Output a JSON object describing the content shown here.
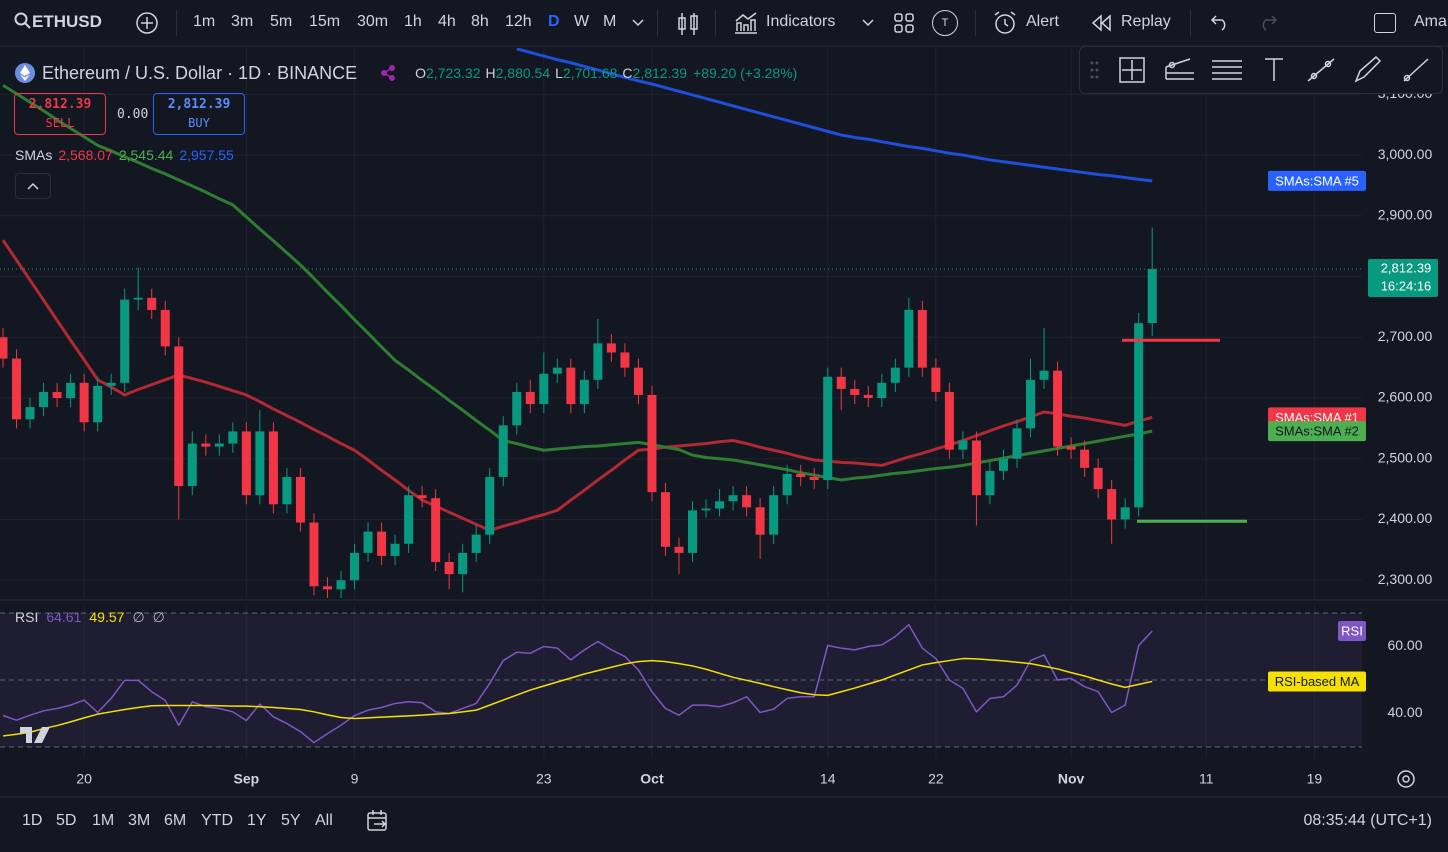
{
  "toolbar": {
    "symbol": "ETHUSD",
    "intervals": [
      "1m",
      "3m",
      "5m",
      "15m",
      "30m",
      "1h",
      "4h",
      "8h",
      "12h",
      "D",
      "W",
      "M"
    ],
    "active_interval": "D",
    "indicators": "Indicators",
    "alert": "Alert",
    "replay": "Replay",
    "cut_off": "Ama",
    "badge": "T"
  },
  "legend": {
    "title": "Ethereum / U.S. Dollar · 1D · BINANCE",
    "ohlc": [
      {
        "key": "O",
        "value": "2,723.32"
      },
      {
        "key": "H",
        "value": "2,880.54"
      },
      {
        "key": "L",
        "value": "2,701.68"
      },
      {
        "key": "C",
        "value": "2,812.39"
      }
    ],
    "change": "+89.20 (+3.28%)",
    "sell_price": "2,812.39",
    "sell": "SELL",
    "spread": "0.00",
    "buy_price": "2,812.39",
    "buy": "BUY",
    "sma_name": "SMAs",
    "sma_values": [
      "2,568.07",
      "2,545.44",
      "2,957.55"
    ],
    "rsi_name": "RSI",
    "rsi_values": [
      "64.61",
      "49.57",
      "∅",
      "∅"
    ]
  },
  "chart_data": [
    {
      "type": "candlestick",
      "up_color": "#089981",
      "down_color": "#f23645",
      "grid": true,
      "categories": [
        null,
        null,
        null,
        null,
        null,
        null,
        "20",
        null,
        null,
        null,
        null,
        null,
        null,
        null,
        null,
        null,
        null,
        null,
        "Sep",
        null,
        null,
        null,
        null,
        null,
        null,
        null,
        "9",
        null,
        null,
        null,
        null,
        null,
        null,
        null,
        null,
        null,
        null,
        null,
        null,
        null,
        "23",
        null,
        null,
        null,
        null,
        null,
        null,
        null,
        "Oct",
        null,
        null,
        null,
        null,
        null,
        null,
        null,
        null,
        null,
        null,
        null,
        null,
        "14",
        null,
        null,
        null,
        null,
        null,
        null,
        null,
        "22",
        null,
        null,
        null,
        null,
        null,
        null,
        null,
        null,
        null,
        "Nov",
        null,
        null,
        null,
        null,
        null,
        null,
        null,
        null,
        null,
        "11",
        null,
        null,
        null,
        null,
        null,
        null,
        null,
        "19",
        null,
        null,
        null
      ],
      "open": [
        2700,
        2665,
        2565,
        2585,
        2610,
        2600,
        2625,
        2560,
        2620,
        2625,
        2762,
        2765,
        2745,
        2685,
        2455,
        2525,
        2520,
        2525,
        2545,
        2440,
        2545,
        2425,
        2470,
        2395,
        2290,
        2285,
        2300,
        2345,
        2380,
        2340,
        2360,
        2440,
        2435,
        2330,
        2310,
        2345,
        2375,
        2470,
        2555,
        2610,
        2590,
        2640,
        2650,
        2590,
        2630,
        2690,
        2675,
        2650,
        2605,
        2445,
        2355,
        2345,
        2415,
        2418,
        2430,
        2440,
        2420,
        2375,
        2440,
        2475,
        2470,
        2465,
        2635,
        2615,
        2605,
        2600,
        2625,
        2650,
        2745,
        2650,
        2610,
        2515,
        2530,
        2440,
        2480,
        2500,
        2550,
        2630,
        2645,
        2520,
        2515,
        2485,
        2450,
        2400,
        2420,
        2723.32,
        null,
        null,
        null,
        null,
        null,
        null,
        null,
        null,
        null,
        null,
        null,
        null,
        null,
        null,
        null
      ],
      "high": [
        2715,
        2680,
        2600,
        2625,
        2625,
        2640,
        2640,
        2635,
        2640,
        2780,
        2815,
        2780,
        2760,
        2700,
        2545,
        2540,
        2540,
        2560,
        2560,
        2580,
        2560,
        2485,
        2485,
        2410,
        2305,
        2315,
        2360,
        2395,
        2395,
        2375,
        2455,
        2455,
        2450,
        2345,
        2360,
        2390,
        2485,
        2570,
        2625,
        2630,
        2675,
        2665,
        2665,
        2645,
        2730,
        2705,
        2690,
        2665,
        2620,
        2460,
        2370,
        2430,
        2433,
        2450,
        2455,
        2455,
        2435,
        2455,
        2490,
        2490,
        2485,
        2650,
        2650,
        2630,
        2620,
        2640,
        2665,
        2765,
        2760,
        2665,
        2625,
        2545,
        2545,
        2495,
        2515,
        2565,
        2665,
        2715,
        2660,
        2535,
        2530,
        2500,
        2465,
        2435,
        2740,
        2880.54,
        null,
        null,
        null,
        null,
        null,
        null,
        null,
        null,
        null,
        null,
        null,
        null,
        null,
        null,
        null
      ],
      "low": [
        2650,
        2550,
        2550,
        2570,
        2585,
        2585,
        2545,
        2545,
        2605,
        2610,
        2745,
        2730,
        2670,
        2400,
        2440,
        2505,
        2505,
        2510,
        2425,
        2425,
        2410,
        2410,
        2380,
        2275,
        2270,
        2270,
        2285,
        2330,
        2325,
        2325,
        2345,
        2420,
        2315,
        2285,
        2280,
        2330,
        2360,
        2455,
        2540,
        2575,
        2575,
        2625,
        2575,
        2575,
        2615,
        2660,
        2635,
        2590,
        2430,
        2340,
        2310,
        2330,
        2403,
        2405,
        2415,
        2405,
        2335,
        2360,
        2425,
        2455,
        2450,
        2450,
        2580,
        2590,
        2585,
        2585,
        2610,
        2635,
        2635,
        2595,
        2500,
        2500,
        2390,
        2425,
        2465,
        2485,
        2535,
        2615,
        2505,
        2500,
        2470,
        2435,
        2360,
        2385,
        2405,
        2701.68,
        null,
        null,
        null,
        null,
        null,
        null,
        null,
        null,
        null,
        null,
        null,
        null,
        null,
        null,
        null
      ],
      "close": [
        2665,
        2565,
        2585,
        2610,
        2600,
        2625,
        2560,
        2620,
        2625,
        2762,
        2765,
        2745,
        2685,
        2455,
        2525,
        2520,
        2525,
        2545,
        2440,
        2545,
        2425,
        2470,
        2395,
        2290,
        2285,
        2300,
        2345,
        2380,
        2340,
        2360,
        2440,
        2435,
        2330,
        2310,
        2345,
        2375,
        2470,
        2555,
        2610,
        2590,
        2640,
        2650,
        2590,
        2630,
        2690,
        2675,
        2650,
        2605,
        2445,
        2355,
        2345,
        2415,
        2418,
        2430,
        2440,
        2420,
        2375,
        2440,
        2475,
        2470,
        2465,
        2635,
        2615,
        2605,
        2600,
        2625,
        2650,
        2745,
        2650,
        2610,
        2515,
        2530,
        2440,
        2480,
        2500,
        2550,
        2630,
        2645,
        2520,
        2515,
        2485,
        2450,
        2400,
        2420,
        2723.19,
        2812.39,
        null,
        null,
        null,
        null,
        null,
        null,
        null,
        null,
        null,
        null,
        null,
        null,
        null,
        null,
        null
      ],
      "last_price_label": "2,812.39",
      "countdown": "16:24:16",
      "ylim": [
        2274,
        3173
      ],
      "yticks": [
        {
          "value": 2300,
          "label": "2,300.00"
        },
        {
          "value": 2400,
          "label": "2,400.00"
        },
        {
          "value": 2500,
          "label": "2,500.00"
        },
        {
          "value": 2600,
          "label": "2,600.00"
        },
        {
          "value": 2700,
          "label": "2,700.00"
        },
        {
          "value": 2800,
          "label": "2,800.00"
        },
        {
          "value": 2900,
          "label": "2,900.00"
        },
        {
          "value": 3000,
          "label": "3,000.00"
        },
        {
          "value": 3100,
          "label": "3,100.00"
        }
      ],
      "horizontal_lines": [
        {
          "value": 2695,
          "color": "#f23645"
        },
        {
          "value": 2397,
          "color": "#4caf50"
        }
      ],
      "series": [
        {
          "name": "SMAs:SMA #1",
          "color": "#b22833",
          "tag_color": "#f23645",
          "values": [
            2860,
            2827,
            2794,
            2761,
            2728,
            2695,
            2663,
            2630,
            2618,
            2605,
            2614,
            2622,
            2630,
            2638,
            2632,
            2626,
            2619,
            2612,
            2605,
            2594,
            2582,
            2571,
            2560,
            2548,
            2537,
            2525,
            2514,
            2498,
            2481,
            2465,
            2448,
            2432,
            2422,
            2412,
            2402,
            2392,
            2382,
            2389,
            2395,
            2402,
            2408,
            2415,
            2432,
            2448,
            2465,
            2481,
            2498,
            2514,
            2516,
            2519,
            2521,
            2523,
            2525,
            2528,
            2530,
            2525,
            2519,
            2514,
            2509,
            2503,
            2498,
            2496,
            2494,
            2493,
            2491,
            2489,
            2496,
            2503,
            2509,
            2516,
            2523,
            2530,
            2538,
            2546,
            2554,
            2561,
            2569,
            2577,
            2574,
            2570,
            2567,
            2563,
            2559,
            2555,
            2562,
            2568.07,
            null,
            null,
            null,
            null,
            null,
            null,
            null,
            null,
            null,
            null,
            null,
            null,
            null,
            null,
            null
          ]
        },
        {
          "name": "SMAs:SMA #2",
          "color": "#2e7d32",
          "tag_color": "#4caf50",
          "values": [
            3115,
            3101,
            3087,
            3073,
            3058,
            3044,
            3030,
            3016,
            3007,
            2997,
            2988,
            2978,
            2969,
            2959,
            2949,
            2939,
            2928,
            2918,
            2898,
            2878,
            2859,
            2839,
            2819,
            2797,
            2774,
            2752,
            2729,
            2707,
            2684,
            2662,
            2646,
            2629,
            2613,
            2596,
            2580,
            2563,
            2547,
            2530,
            2525,
            2519,
            2514,
            2516,
            2518,
            2520,
            2521,
            2523,
            2525,
            2527,
            2523,
            2519,
            2515,
            2506,
            2502,
            2500,
            2498,
            2494,
            2490,
            2486,
            2482,
            2477,
            2473,
            2469,
            2465,
            2468,
            2470,
            2473,
            2476,
            2478,
            2481,
            2484,
            2486,
            2489,
            2493,
            2497,
            2501,
            2505,
            2509,
            2513,
            2517,
            2521,
            2525,
            2529,
            2533,
            2537,
            2541,
            2545.44,
            null,
            null,
            null,
            null,
            null,
            null,
            null,
            null,
            null,
            null,
            null,
            null,
            null,
            null,
            null
          ]
        },
        {
          "name": "SMAs:SMA #5",
          "color": "#1e4fd8",
          "tag_color": "#2962ff",
          "values": [
            null,
            null,
            null,
            null,
            null,
            null,
            null,
            null,
            null,
            null,
            null,
            null,
            null,
            null,
            null,
            null,
            null,
            null,
            null,
            null,
            null,
            null,
            null,
            null,
            null,
            null,
            null,
            null,
            null,
            null,
            null,
            null,
            null,
            null,
            null,
            null,
            null,
            null,
            3175,
            3169,
            3163,
            3157,
            3152,
            3146,
            3140,
            3134,
            3128,
            3122,
            3117,
            3111,
            3105,
            3099,
            3093,
            3087,
            3081,
            3075,
            3069,
            3063,
            3057,
            3051,
            3045,
            3039,
            3033,
            3029,
            3026,
            3022,
            3018,
            3014,
            3011,
            3007,
            3003,
            3000,
            2996,
            2992,
            2989,
            2986,
            2983,
            2980,
            2977,
            2974,
            2971,
            2968,
            2966,
            2963,
            2960,
            2957.55,
            null,
            null,
            null,
            null,
            null,
            null,
            null,
            null,
            null,
            null,
            null,
            null,
            null,
            null,
            null
          ]
        }
      ]
    },
    {
      "type": "line",
      "ylim": [
        29.7,
        70.3
      ],
      "yticks": [
        {
          "value": 40,
          "label": "40.00"
        },
        {
          "value": 60,
          "label": "60.00"
        }
      ],
      "levels": [
        30,
        50,
        70
      ],
      "series": [
        {
          "name": "RSI",
          "color": "#7e57c2",
          "text_color": "#ffffff",
          "values": [
            39.4,
            38.0,
            39.5,
            40.8,
            41.5,
            42.5,
            44.0,
            40.3,
            44.5,
            49.9,
            49.9,
            46.5,
            43.9,
            36.5,
            43.5,
            42.0,
            41.5,
            40.5,
            37.9,
            42.8,
            39.0,
            37.0,
            34.6,
            31.3,
            34.0,
            36.5,
            39.4,
            41.0,
            41.8,
            43.0,
            43.5,
            43.2,
            40.5,
            40.0,
            41.5,
            43.0,
            49.0,
            55.8,
            58.3,
            58.0,
            60.0,
            59.5,
            56.0,
            59.0,
            61.5,
            59.0,
            57.0,
            53.0,
            46.5,
            41.5,
            39.5,
            42.5,
            42.5,
            42.0,
            43.2,
            45.0,
            40.3,
            41.3,
            44.5,
            45.0,
            45.0,
            60.3,
            59.5,
            59.0,
            60.0,
            60.5,
            63.0,
            66.5,
            59.5,
            56.4,
            50.0,
            47.5,
            40.5,
            44.5,
            45.0,
            48.5,
            55.8,
            57.5,
            50.0,
            50.5,
            48.0,
            46.5,
            40.3,
            42.5,
            60.3,
            64.61,
            null,
            null,
            null,
            null,
            null,
            null,
            null,
            null,
            null,
            null,
            null,
            null,
            null,
            null,
            null
          ]
        },
        {
          "name": "RSI-based MA",
          "color": "#f5e100",
          "text_color": "#131722",
          "values": [
            33.3,
            33.8,
            34.4,
            35.5,
            36.4,
            37.5,
            38.7,
            39.8,
            40.5,
            41.2,
            41.8,
            42.3,
            42.4,
            42.4,
            42.4,
            42.4,
            42.3,
            42.2,
            42.2,
            42.0,
            41.8,
            41.5,
            41.2,
            40.5,
            39.6,
            38.8,
            38.5,
            38.7,
            38.9,
            39.1,
            39.3,
            39.5,
            39.8,
            40.0,
            40.5,
            41.0,
            42.5,
            44.0,
            45.5,
            47.0,
            48.2,
            49.4,
            50.6,
            51.8,
            52.8,
            53.8,
            54.8,
            55.5,
            55.8,
            55.5,
            54.9,
            54.2,
            53.2,
            52.0,
            50.8,
            49.9,
            49.0,
            48.0,
            47.1,
            46.2,
            45.6,
            45.4,
            46.5,
            47.6,
            48.8,
            50.0,
            51.5,
            53.0,
            54.5,
            55.2,
            55.8,
            56.4,
            56.3,
            56.0,
            55.7,
            55.3,
            54.9,
            54.1,
            53.3,
            52.2,
            51.2,
            50.0,
            48.8,
            47.8,
            48.7,
            49.57,
            null,
            null,
            null,
            null,
            null,
            null,
            null,
            null,
            null,
            null,
            null,
            null,
            null,
            null,
            null
          ]
        }
      ]
    }
  ],
  "bottom_bar": {
    "ranges": [
      "1D",
      "5D",
      "1M",
      "3M",
      "6M",
      "YTD",
      "1Y",
      "5Y",
      "All"
    ],
    "clock": "08:35:44 (UTC+1)"
  }
}
